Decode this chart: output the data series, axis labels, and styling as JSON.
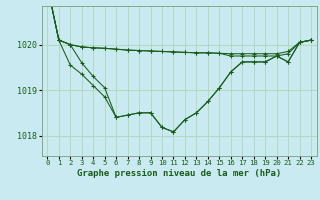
{
  "background_color": "#c8eaf0",
  "grid_color": "#b0d8b8",
  "line_color": "#1a5c1a",
  "xlabel": "Graphe pression niveau de la mer (hPa)",
  "xlabel_fontsize": 6.5,
  "ylabel_ticks": [
    1018,
    1019,
    1020
  ],
  "xlim": [
    -0.5,
    23.5
  ],
  "ylim": [
    1017.55,
    1020.85
  ],
  "series": [
    [
      1021.3,
      1020.1,
      1020.0,
      1019.95,
      1019.93,
      1019.92,
      1019.9,
      1019.88,
      1019.87,
      1019.86,
      1019.85,
      1019.84,
      1019.83,
      1019.82,
      1019.82,
      1019.81,
      1019.8,
      1019.8,
      1019.8,
      1019.8,
      1019.8,
      1019.85,
      1020.05,
      1020.1
    ],
    [
      1021.3,
      1020.1,
      1020.0,
      1019.95,
      1019.93,
      1019.92,
      1019.9,
      1019.88,
      1019.87,
      1019.86,
      1019.85,
      1019.84,
      1019.83,
      1019.82,
      1019.82,
      1019.81,
      1019.75,
      1019.75,
      1019.75,
      1019.75,
      1019.75,
      1019.8,
      1020.05,
      1020.1
    ],
    [
      1021.3,
      1020.1,
      1020.0,
      1019.6,
      1019.3,
      1019.05,
      1018.4,
      1018.45,
      1018.5,
      1018.5,
      1018.18,
      1018.08,
      1018.35,
      1018.5,
      1018.75,
      1019.05,
      1019.4,
      1019.62,
      1019.62,
      1019.62,
      1019.75,
      1019.62,
      1020.05,
      1020.1
    ],
    [
      1021.3,
      1020.1,
      1019.55,
      1019.35,
      1019.1,
      1018.85,
      1018.4,
      1018.45,
      1018.5,
      1018.5,
      1018.18,
      1018.08,
      1018.35,
      1018.5,
      1018.75,
      1019.05,
      1019.4,
      1019.62,
      1019.62,
      1019.62,
      1019.75,
      1019.62,
      1020.05,
      1020.1
    ]
  ],
  "xtick_labels": [
    "0",
    "1",
    "2",
    "3",
    "4",
    "5",
    "6",
    "7",
    "8",
    "9",
    "10",
    "11",
    "12",
    "13",
    "14",
    "15",
    "16",
    "17",
    "18",
    "19",
    "20",
    "21",
    "22",
    "23"
  ],
  "ytick_fontsize": 6.0,
  "xtick_fontsize": 5.2
}
